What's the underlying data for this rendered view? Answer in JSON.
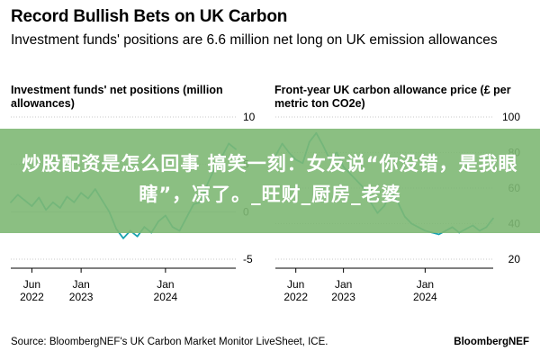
{
  "header": {
    "title": "Record Bullish Bets on UK Carbon",
    "subtitle": "Investment funds' positions are 6.6 million net long on UK emission allowances"
  },
  "overlay": {
    "banner_text": "炒股配资是怎么回事 搞笑一刻：女友说“你没错，是我眼瞎”，凉了。_旺财_厨房_老婆"
  },
  "footer": {
    "source": "Source: BloombergNEF's UK Carbon Market Monitor LiveSheet, ICE.",
    "brand": "BloombergNEF"
  },
  "colors": {
    "line": "#1aa3b0",
    "grid": "#c8c8c8",
    "banner": "#7eb874"
  },
  "chart_data": [
    {
      "type": "line",
      "title": "Investment funds' net positions (million allowances)",
      "xlabel": "",
      "ylabel": "",
      "ylim": [
        -5,
        10
      ],
      "xlim": [
        "2022-03",
        "2024-11"
      ],
      "yticks": [
        10,
        5,
        0,
        -5
      ],
      "xticks": [
        {
          "x": "2022-06",
          "label": [
            "Jun",
            "2022"
          ]
        },
        {
          "x": "2023-01",
          "label": [
            "Jan",
            "2023"
          ]
        },
        {
          "x": "2024-01",
          "label": [
            "Jan",
            "2024"
          ]
        }
      ],
      "series": [
        {
          "color": "#1aa3b0",
          "points": [
            [
              "2022-03",
              1.0
            ],
            [
              "2022-04",
              1.8
            ],
            [
              "2022-05",
              1.2
            ],
            [
              "2022-06",
              0.6
            ],
            [
              "2022-07",
              1.5
            ],
            [
              "2022-08",
              0.2
            ],
            [
              "2022-09",
              1.0
            ],
            [
              "2022-10",
              0.4
            ],
            [
              "2022-11",
              1.6
            ],
            [
              "2022-12",
              1.0
            ],
            [
              "2023-01",
              2.0
            ],
            [
              "2023-02",
              1.4
            ],
            [
              "2023-03",
              2.4
            ],
            [
              "2023-04",
              1.2
            ],
            [
              "2023-05",
              0.0
            ],
            [
              "2023-06",
              -1.8
            ],
            [
              "2023-07",
              -2.8
            ],
            [
              "2023-08",
              -2.0
            ],
            [
              "2023-09",
              -2.6
            ],
            [
              "2023-10",
              -1.6
            ],
            [
              "2023-11",
              -2.2
            ],
            [
              "2023-12",
              -1.0
            ],
            [
              "2024-01",
              -0.4
            ],
            [
              "2024-02",
              -1.6
            ],
            [
              "2024-03",
              -2.0
            ],
            [
              "2024-04",
              -0.6
            ],
            [
              "2024-05",
              0.8
            ],
            [
              "2024-06",
              1.0
            ],
            [
              "2024-07",
              3.0
            ],
            [
              "2024-08",
              4.6
            ],
            [
              "2024-09",
              5.8
            ],
            [
              "2024-10",
              7.2
            ],
            [
              "2024-11",
              6.6
            ]
          ]
        }
      ]
    },
    {
      "type": "line",
      "title": "Front-year UK carbon allowance price (£ per metric ton CO2e)",
      "xlabel": "",
      "ylabel": "",
      "ylim": [
        20,
        100
      ],
      "xlim": [
        "2022-03",
        "2024-11"
      ],
      "yticks": [
        100,
        80,
        60,
        40,
        20
      ],
      "xticks": [
        {
          "x": "2022-06",
          "label": [
            "Jun",
            "2022"
          ]
        },
        {
          "x": "2023-01",
          "label": [
            "Jan",
            "2023"
          ]
        },
        {
          "x": "2024-01",
          "label": [
            "Jan",
            "2024"
          ]
        }
      ],
      "series": [
        {
          "color": "#1aa3b0",
          "points": [
            [
              "2022-03",
              78
            ],
            [
              "2022-04",
              85
            ],
            [
              "2022-05",
              80
            ],
            [
              "2022-06",
              76
            ],
            [
              "2022-07",
              74
            ],
            [
              "2022-08",
              86
            ],
            [
              "2022-09",
              91
            ],
            [
              "2022-10",
              84
            ],
            [
              "2022-11",
              76
            ],
            [
              "2022-12",
              80
            ],
            [
              "2023-01",
              72
            ],
            [
              "2023-02",
              68
            ],
            [
              "2023-03",
              64
            ],
            [
              "2023-04",
              60
            ],
            [
              "2023-05",
              52
            ],
            [
              "2023-06",
              46
            ],
            [
              "2023-07",
              50
            ],
            [
              "2023-08",
              58
            ],
            [
              "2023-09",
              52
            ],
            [
              "2023-10",
              44
            ],
            [
              "2023-11",
              40
            ],
            [
              "2023-12",
              38
            ],
            [
              "2024-01",
              36
            ],
            [
              "2024-02",
              35
            ],
            [
              "2024-03",
              34
            ],
            [
              "2024-04",
              36
            ],
            [
              "2024-05",
              38
            ],
            [
              "2024-06",
              35
            ],
            [
              "2024-07",
              37
            ],
            [
              "2024-08",
              39
            ],
            [
              "2024-09",
              36
            ],
            [
              "2024-10",
              38
            ],
            [
              "2024-11",
              43
            ]
          ]
        }
      ]
    }
  ]
}
